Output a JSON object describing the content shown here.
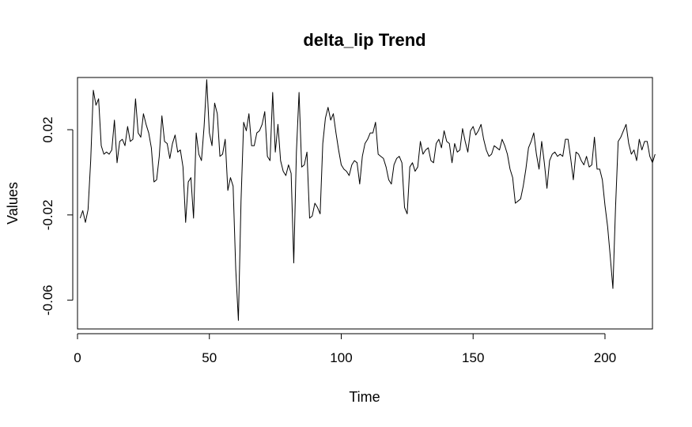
{
  "chart_data": {
    "type": "line",
    "title": "delta_lip Trend",
    "xlabel": "Time",
    "ylabel": "Values",
    "xlim": [
      0,
      218
    ],
    "ylim": [
      -0.0735,
      0.0445
    ],
    "x_ticks": [
      {
        "value": 0,
        "label": "0"
      },
      {
        "value": 50,
        "label": "50"
      },
      {
        "value": 100,
        "label": "100"
      },
      {
        "value": 150,
        "label": "150"
      },
      {
        "value": 200,
        "label": "200"
      }
    ],
    "y_ticks": [
      {
        "value": -0.06,
        "label": "-0.06"
      },
      {
        "value": -0.02,
        "label": "-0.02"
      },
      {
        "value": 0.02,
        "label": "0.02"
      }
    ],
    "grid": false,
    "legend": "none",
    "line_color": "#000000",
    "series": [
      {
        "x_start": 1,
        "values": [
          -0.0215,
          -0.018,
          -0.0235,
          -0.0175,
          0.0055,
          0.0385,
          0.0315,
          0.0345,
          0.0125,
          0.0085,
          0.0095,
          0.0085,
          0.0105,
          0.0245,
          0.0045,
          0.0145,
          0.0155,
          0.0125,
          0.0215,
          0.0145,
          0.0155,
          0.0345,
          0.0185,
          0.0165,
          0.0275,
          0.0225,
          0.0185,
          0.0115,
          -0.0045,
          -0.0035,
          0.0075,
          0.0265,
          0.0145,
          0.0135,
          0.0065,
          0.0135,
          0.0175,
          0.0095,
          0.0105,
          0.0025,
          -0.0235,
          -0.0045,
          -0.0025,
          -0.0215,
          0.0185,
          0.0085,
          0.0055,
          0.0215,
          0.0435,
          0.0185,
          0.0125,
          0.0325,
          0.0275,
          0.0075,
          0.0085,
          0.0155,
          -0.0085,
          -0.0025,
          -0.0065,
          -0.0455,
          -0.0695,
          -0.0135,
          0.0235,
          0.0195,
          0.0275,
          0.0125,
          0.0125,
          0.0185,
          0.0195,
          0.0225,
          0.0285,
          0.0075,
          0.0055,
          0.0375,
          0.0095,
          0.0225,
          0.0055,
          0.0005,
          -0.0015,
          0.0035,
          -0.0005,
          -0.0425,
          0.0095,
          0.0375,
          0.0025,
          0.0035,
          0.0095,
          -0.0215,
          -0.0205,
          -0.0145,
          -0.0165,
          -0.0195,
          0.0135,
          0.0255,
          0.0305,
          0.0245,
          0.0275,
          0.0185,
          0.0105,
          0.0035,
          0.0015,
          0.0005,
          -0.0015,
          0.0035,
          0.0055,
          0.0045,
          -0.0055,
          0.0075,
          0.0135,
          0.0155,
          0.0185,
          0.0185,
          0.0235,
          0.0085,
          0.0075,
          0.0065,
          0.0025,
          -0.0035,
          -0.0055,
          0.0035,
          0.0065,
          0.0075,
          0.0045,
          -0.0165,
          -0.0195,
          0.0025,
          0.0045,
          0.0005,
          0.0025,
          0.0145,
          0.0085,
          0.0105,
          0.0115,
          0.0055,
          0.0045,
          0.0135,
          0.0155,
          0.0115,
          0.0195,
          0.0145,
          0.0135,
          0.0045,
          0.0135,
          0.0095,
          0.0105,
          0.0205,
          0.0145,
          0.0095,
          0.0195,
          0.0215,
          0.0175,
          0.0195,
          0.0225,
          0.0155,
          0.0105,
          0.0075,
          0.0085,
          0.0125,
          0.0115,
          0.0105,
          0.0155,
          0.0125,
          0.0085,
          0.0015,
          -0.0025,
          -0.0145,
          -0.0135,
          -0.0125,
          -0.0065,
          0.0015,
          0.0115,
          0.0145,
          0.0185,
          0.0085,
          0.0015,
          0.0145,
          0.0045,
          -0.0075,
          0.0055,
          0.0085,
          0.0095,
          0.0075,
          0.0085,
          0.0075,
          0.0155,
          0.0155,
          0.0065,
          -0.0035,
          0.0095,
          0.0085,
          0.0055,
          0.0035,
          0.0075,
          0.0025,
          0.0035,
          0.0165,
          0.0015,
          0.0015,
          -0.0035,
          -0.0155,
          -0.0255,
          -0.0395,
          -0.0545,
          -0.0165,
          0.0145,
          0.0165,
          0.0195,
          0.0225,
          0.0135,
          0.0085,
          0.0105,
          0.0055,
          0.0155,
          0.0105,
          0.0145,
          0.0145,
          0.0075,
          0.0045,
          0.0085
        ]
      }
    ]
  }
}
